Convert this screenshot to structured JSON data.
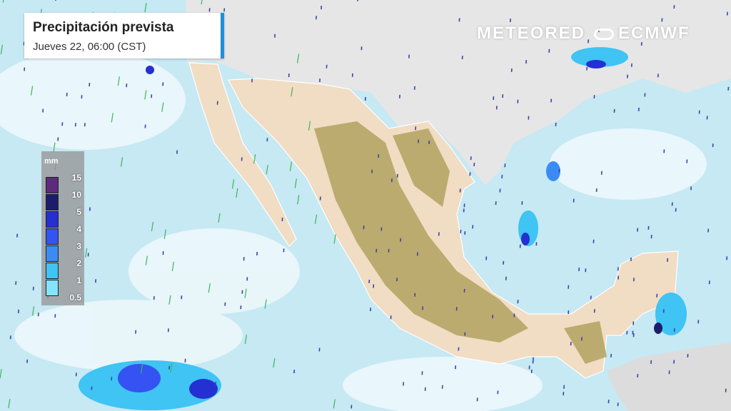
{
  "header": {
    "title": "Precipitación prevista",
    "subtitle": "Jueves 22, 06:00 (CST)"
  },
  "legend": {
    "unit": "mm",
    "ticks": [
      "15",
      "10",
      "5",
      "4",
      "3",
      "2",
      "1",
      "0.5"
    ],
    "colors": [
      "#5e2a7c",
      "#1b1d6c",
      "#2430d2",
      "#3552f2",
      "#3a8cf4",
      "#3fc4f4",
      "#84e4fb"
    ]
  },
  "branding": {
    "brand": "METEORED",
    "partner": "ECMWF"
  },
  "map_colors": {
    "ocean": "#c6e9f3",
    "clouds": "#eef8fb",
    "land_us": "#e6e6e6",
    "land_mexico": "#f1dcc4",
    "mountains": "#a99b52",
    "borders": "#ffffff"
  }
}
